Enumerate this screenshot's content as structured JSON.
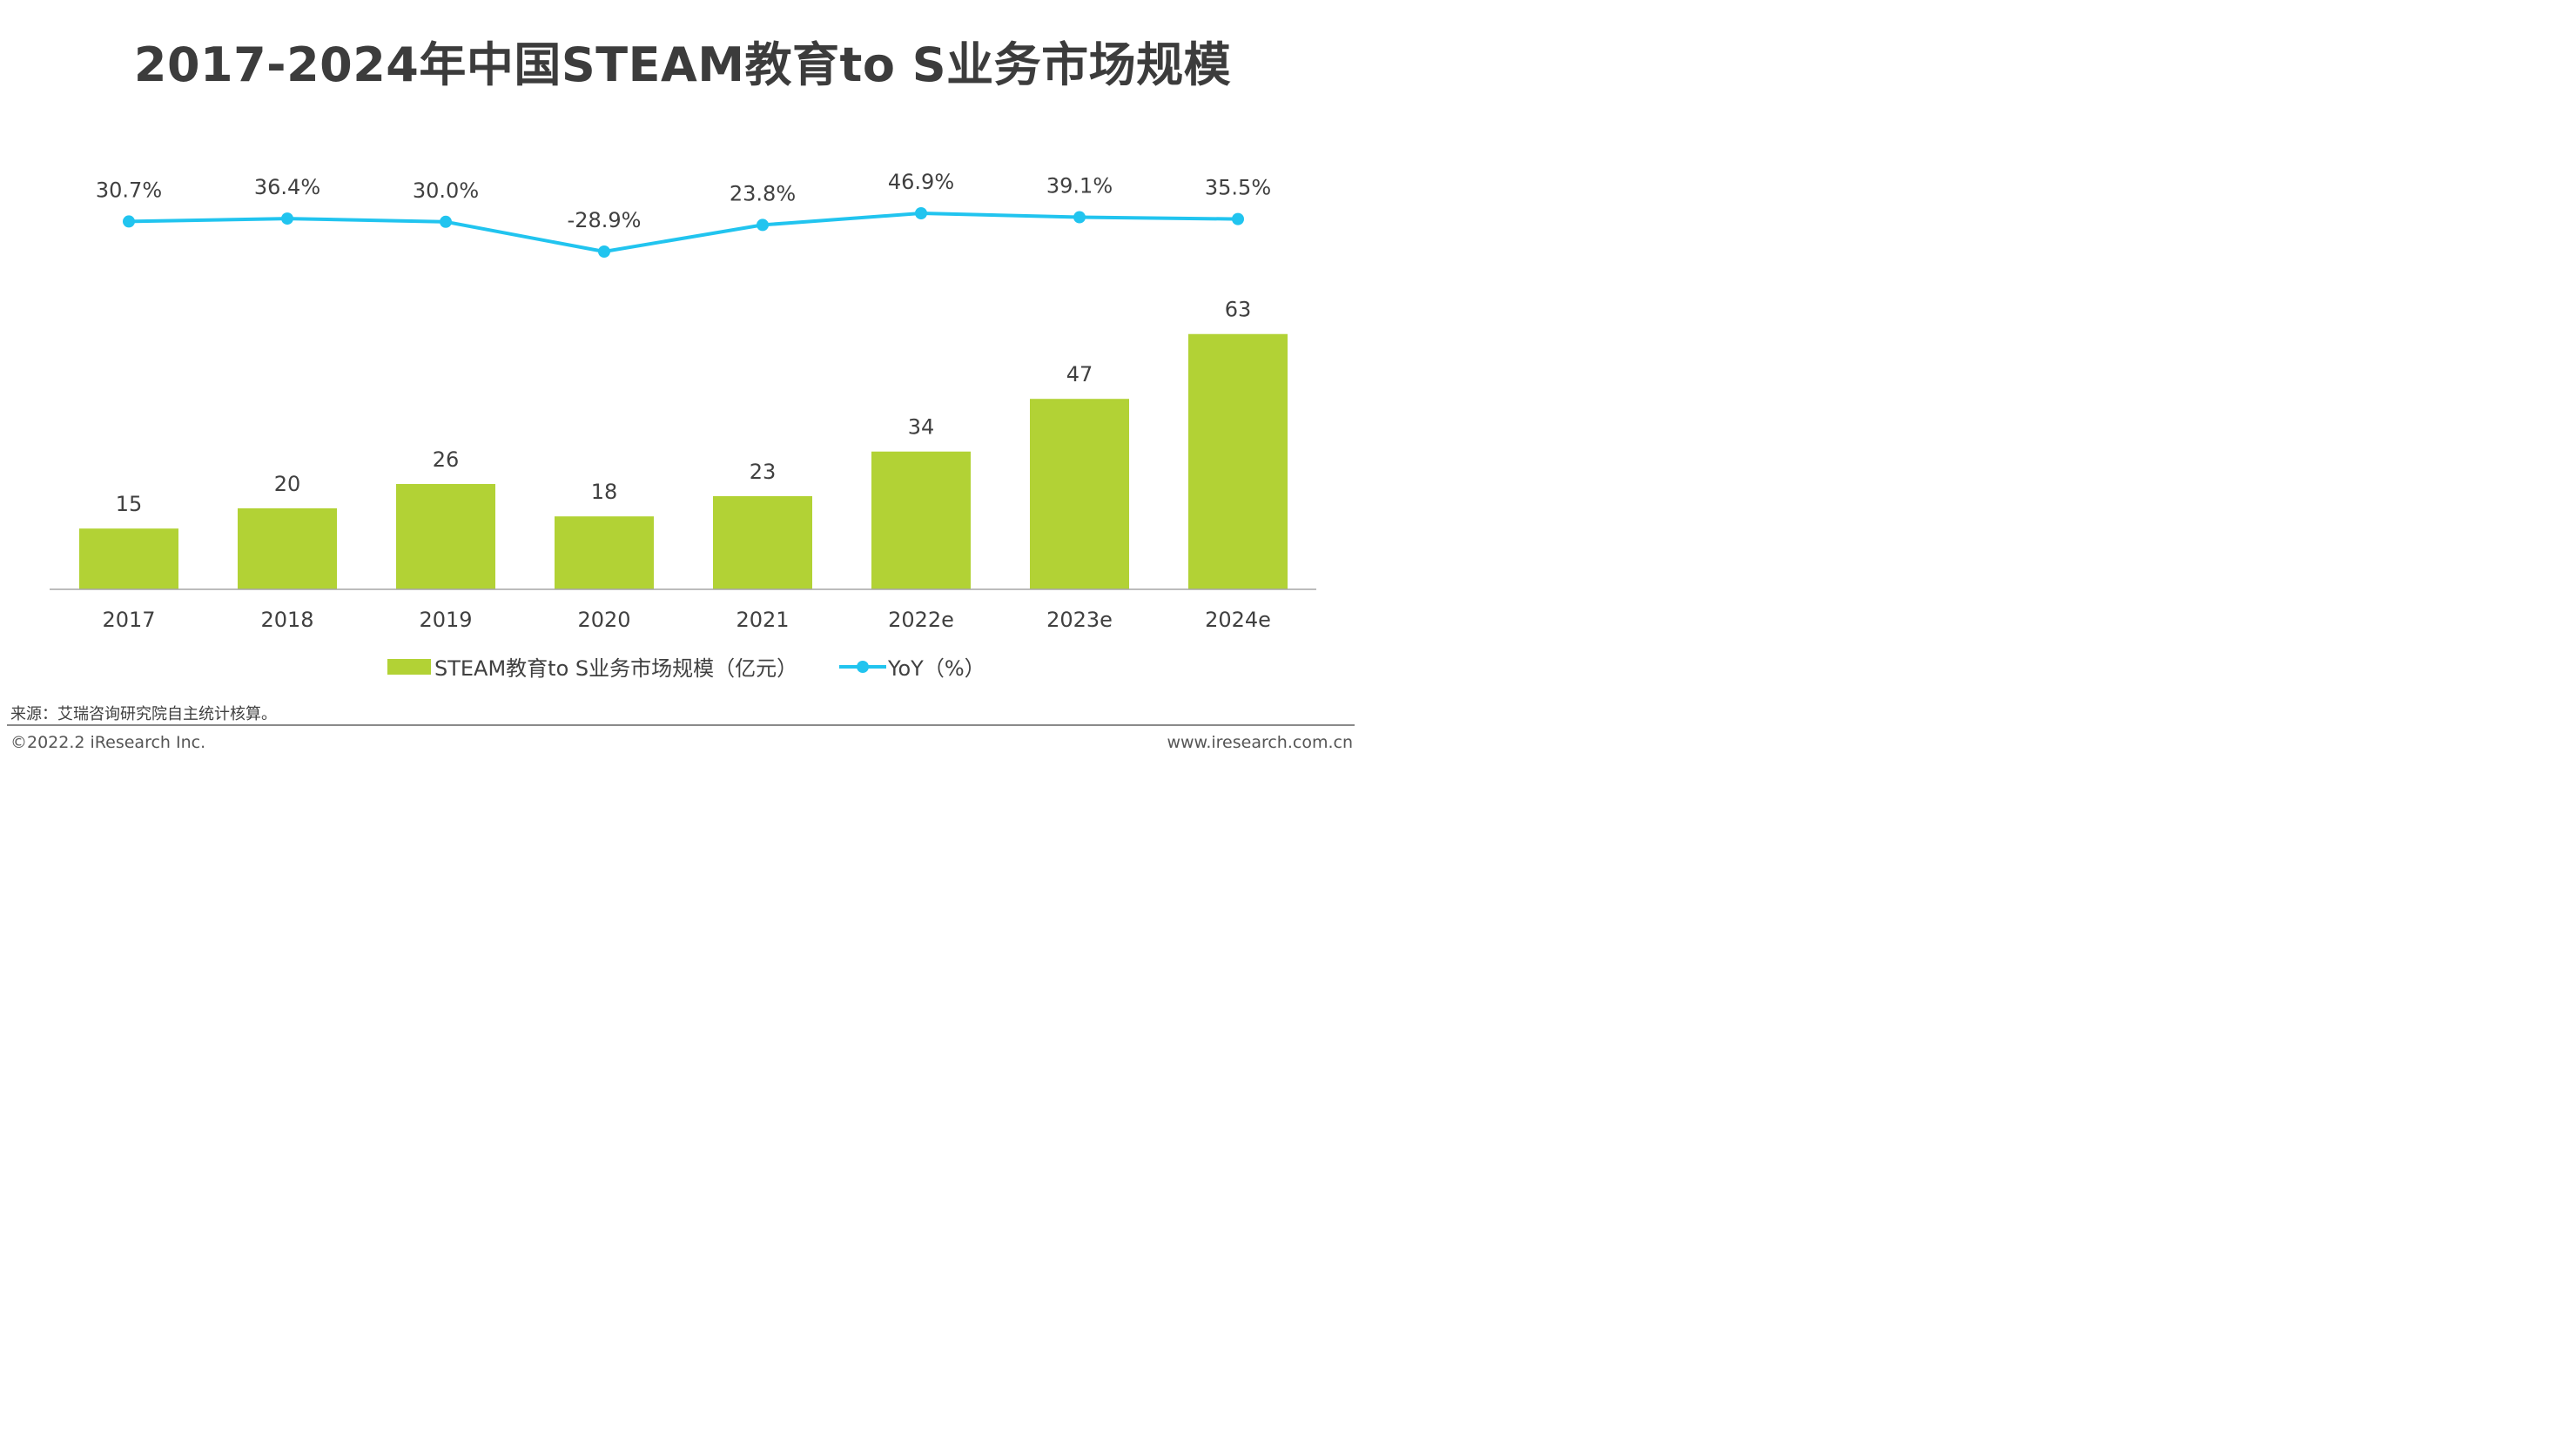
{
  "title": "2017-2024年中国STEAM教育to S业务市场规模",
  "chart_data": {
    "type": "bar",
    "categories": [
      "2017",
      "2018",
      "2019",
      "2020",
      "2021",
      "2022e",
      "2023e",
      "2024e"
    ],
    "series": [
      {
        "name": "STEAM教育to S业务市场规模（亿元）",
        "type": "bar",
        "values": [
          15,
          20,
          26,
          18,
          23,
          34,
          47,
          63
        ],
        "labels": [
          "15",
          "20",
          "26",
          "18",
          "23",
          "34",
          "47",
          "63"
        ],
        "color": "#b2d235"
      },
      {
        "name": "YoY（%）",
        "type": "line",
        "values": [
          30.7,
          36.4,
          30.0,
          -28.9,
          23.8,
          46.9,
          39.1,
          35.5
        ],
        "labels": [
          "30.7%",
          "36.4%",
          "30.0%",
          "-28.9%",
          "23.8%",
          "46.9%",
          "39.1%",
          "35.5%"
        ],
        "color": "#21c4ef"
      }
    ],
    "grid": false,
    "legend_position": "bottom"
  },
  "source": "来源：艾瑞咨询研究院自主统计核算。",
  "copyright": "©2022.2 iResearch Inc.",
  "website": "www.iresearch.com.cn"
}
